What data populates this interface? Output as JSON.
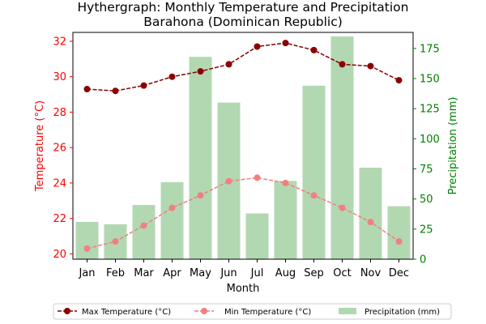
{
  "chart_data": {
    "type": "bar+line",
    "title_line1": "Hythergraph: Monthly Temperature and Precipitation",
    "title_line2": "Barahona (Dominican Republic)",
    "xlabel": "Month",
    "ylabel_left": "Temperature (°C)",
    "ylabel_right": "Precipitation (mm)",
    "categories": [
      "Jan",
      "Feb",
      "Mar",
      "Apr",
      "May",
      "Jun",
      "Jul",
      "Aug",
      "Sep",
      "Oct",
      "Nov",
      "Dec"
    ],
    "ylim_left": [
      19.7,
      32.5
    ],
    "ylim_right": [
      0,
      188.3
    ],
    "left_ticks": [
      20,
      22,
      24,
      26,
      28,
      30,
      32
    ],
    "right_ticks": [
      0,
      25,
      50,
      75,
      100,
      125,
      150,
      175
    ],
    "series": [
      {
        "name": "Max Temperature (°C)",
        "kind": "line",
        "axis": "left",
        "color": "#8b0000",
        "values": [
          29.3,
          29.2,
          29.5,
          30.0,
          30.3,
          30.7,
          31.7,
          31.9,
          31.5,
          30.7,
          30.6,
          29.8
        ]
      },
      {
        "name": "Min Temperature (°C)",
        "kind": "line",
        "axis": "left",
        "color": "#f08080",
        "values": [
          20.3,
          20.7,
          21.6,
          22.6,
          23.3,
          24.1,
          24.3,
          24.0,
          23.3,
          22.6,
          21.8,
          20.7
        ]
      },
      {
        "name": "Precipitation (mm)",
        "kind": "bar",
        "axis": "right",
        "color": "#b2d8b2",
        "values": [
          31,
          29,
          45,
          64,
          168,
          130,
          38,
          65,
          144,
          185,
          76,
          44
        ]
      }
    ],
    "colors": {
      "left_axis": "#ff0000",
      "right_axis": "#008000"
    }
  }
}
